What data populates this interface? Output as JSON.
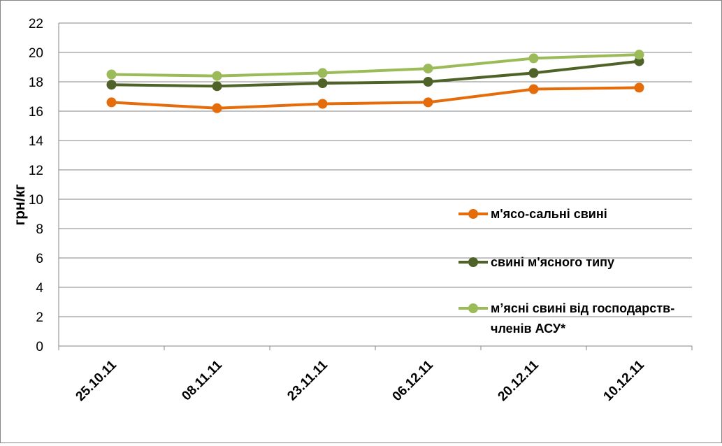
{
  "chart_data": {
    "type": "line",
    "title": "",
    "xlabel": "",
    "ylabel": "грн/кг",
    "ylim": [
      0,
      22
    ],
    "yticks": [
      0,
      2,
      4,
      6,
      8,
      10,
      12,
      14,
      16,
      18,
      20,
      22
    ],
    "grid": true,
    "legend_position": "right",
    "categories": [
      "25.10.11",
      "08.11.11",
      "23.11.11",
      "06.12.11",
      "20.12.11",
      "10.12.11"
    ],
    "series": [
      {
        "name": "м'ясо-сальні свині",
        "color": "#E46C0A",
        "values": [
          16.6,
          16.2,
          16.5,
          16.6,
          17.5,
          17.6
        ]
      },
      {
        "name": "свині м'ясного типу",
        "color": "#4F6228",
        "values": [
          17.8,
          17.7,
          17.9,
          18.0,
          18.6,
          19.4
        ]
      },
      {
        "name": "м’ясні свині від господарств-членів АСУ*",
        "name_lines": [
          "м’ясні свині від господарств-",
          "членів АСУ*"
        ],
        "color": "#9BBB59",
        "values": [
          18.5,
          18.4,
          18.6,
          18.9,
          19.6,
          19.85
        ]
      }
    ]
  }
}
